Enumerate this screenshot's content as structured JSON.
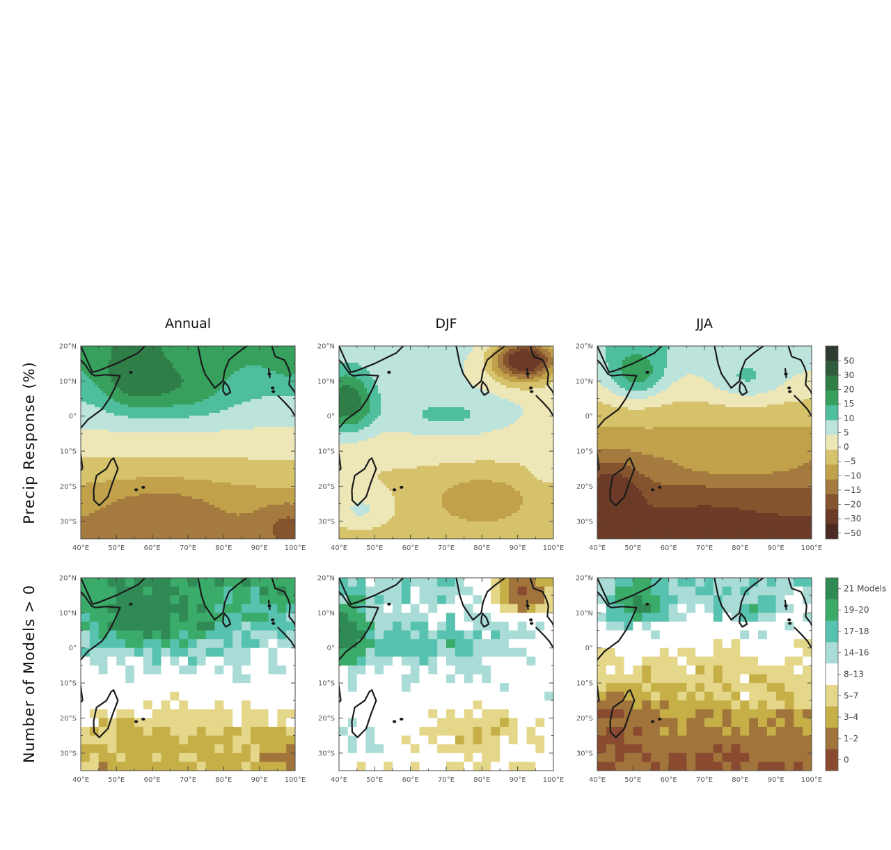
{
  "figure": {
    "columns": [
      {
        "id": "annual",
        "title": "Annual"
      },
      {
        "id": "djf",
        "title": "DJF"
      },
      {
        "id": "jja",
        "title": "JJA"
      }
    ],
    "rows": [
      {
        "id": "response",
        "label": "Precip Response (%)"
      },
      {
        "id": "count",
        "label": "Number of Models > 0"
      }
    ],
    "lon_ticks": [
      "40°E",
      "50°E",
      "60°E",
      "70°E",
      "80°E",
      "90°E",
      "100°E"
    ],
    "lat_ticks": [
      "20°N",
      "10°N",
      "0°",
      "10°S",
      "20°S",
      "30°S"
    ],
    "lon_range": [
      40,
      100
    ],
    "lat_range": [
      -35,
      20
    ]
  },
  "colorbars": {
    "response": {
      "labels": [
        "50",
        "30",
        "20",
        "15",
        "10",
        "5",
        "0",
        "−5",
        "−10",
        "−15",
        "−20",
        "−30",
        "−50"
      ],
      "colors": [
        "#2e3d30",
        "#2f5a3c",
        "#2f7e48",
        "#36a05c",
        "#4fbe9c",
        "#bde3dd",
        "#ede6b6",
        "#d6c26a",
        "#c1a24a",
        "#a47a3e",
        "#86532f",
        "#6b3b28",
        "#4a2a22"
      ]
    },
    "count": {
      "labels": [
        "21 Models",
        "19–20",
        "17–18",
        "14–16",
        "8–13",
        "5–7",
        "3–4",
        "1–2",
        "0"
      ],
      "colors": [
        "#2f8a55",
        "#3aab68",
        "#58c2b0",
        "#a9dcd6",
        "#ffffff",
        "#e4d78a",
        "#c7af48",
        "#a0743b",
        "#8a4a30"
      ]
    }
  }
}
